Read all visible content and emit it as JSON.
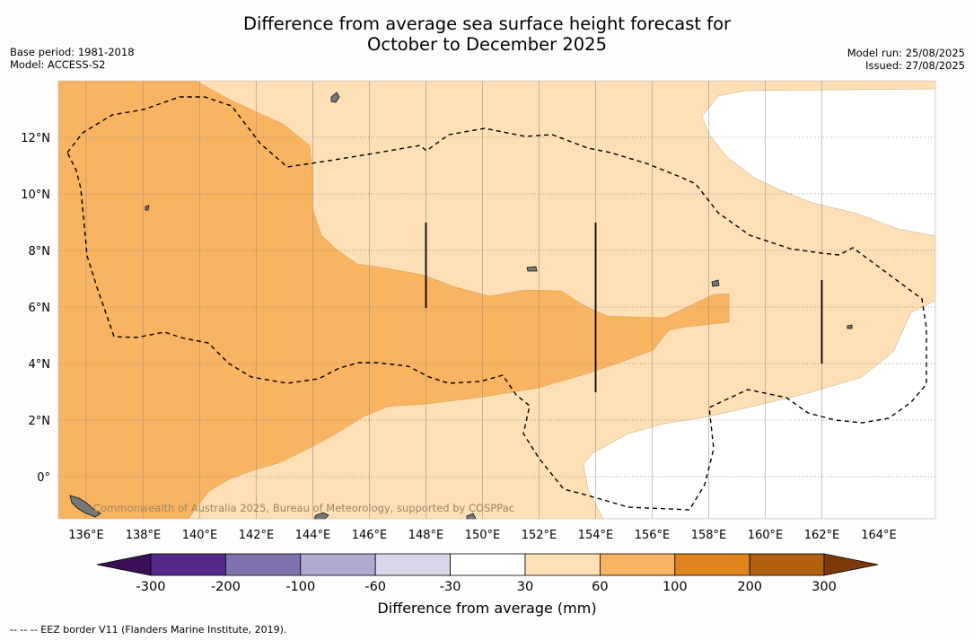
{
  "title_line1": "Difference from average sea surface height forecast for",
  "title_line2": "October to December 2025",
  "base_period": "Base period: 1981-2018",
  "model": "Model: ACCESS-S2",
  "model_run": "Model run: 25/08/2025",
  "issued": "Issued: 27/08/2025",
  "latitude_labels": [
    "12°N",
    "10°N",
    "8°N",
    "6°N",
    "4°N",
    "2°N",
    "0°"
  ],
  "longitude_labels": [
    "136°E",
    "138°E",
    "140°E",
    "142°E",
    "144°E",
    "146°E",
    "148°E",
    "150°E",
    "152°E",
    "154°E",
    "156°E",
    "158°E",
    "160°E",
    "162°E",
    "164°E"
  ],
  "copyright": "Commonwealth of Australia 2025, Bureau of Meteorology, supported by COSPPac",
  "colorbar": {
    "title": "Difference from average (mm)",
    "tick_labels": [
      "-300",
      "-200",
      "-100",
      "-60",
      "-30",
      "30",
      "60",
      "100",
      "200",
      "300"
    ],
    "colors": {
      "below_min": "#3b0f55",
      "minus300_minus200": "#55298a",
      "minus200_minus100": "#7e71ad",
      "minus100_minus60": "#aeaad0",
      "minus60_minus30": "#d8d8ea",
      "minus30_30": "#ffffff",
      "30_60": "#fde0b5",
      "60_100": "#f9b461",
      "100_200": "#e0841d",
      "200_300": "#b0600f",
      "above_max": "#7b3a08"
    }
  },
  "legend_note": "--  --  -- EEZ border V11 (Flanders Marine Institute, 2019)."
}
